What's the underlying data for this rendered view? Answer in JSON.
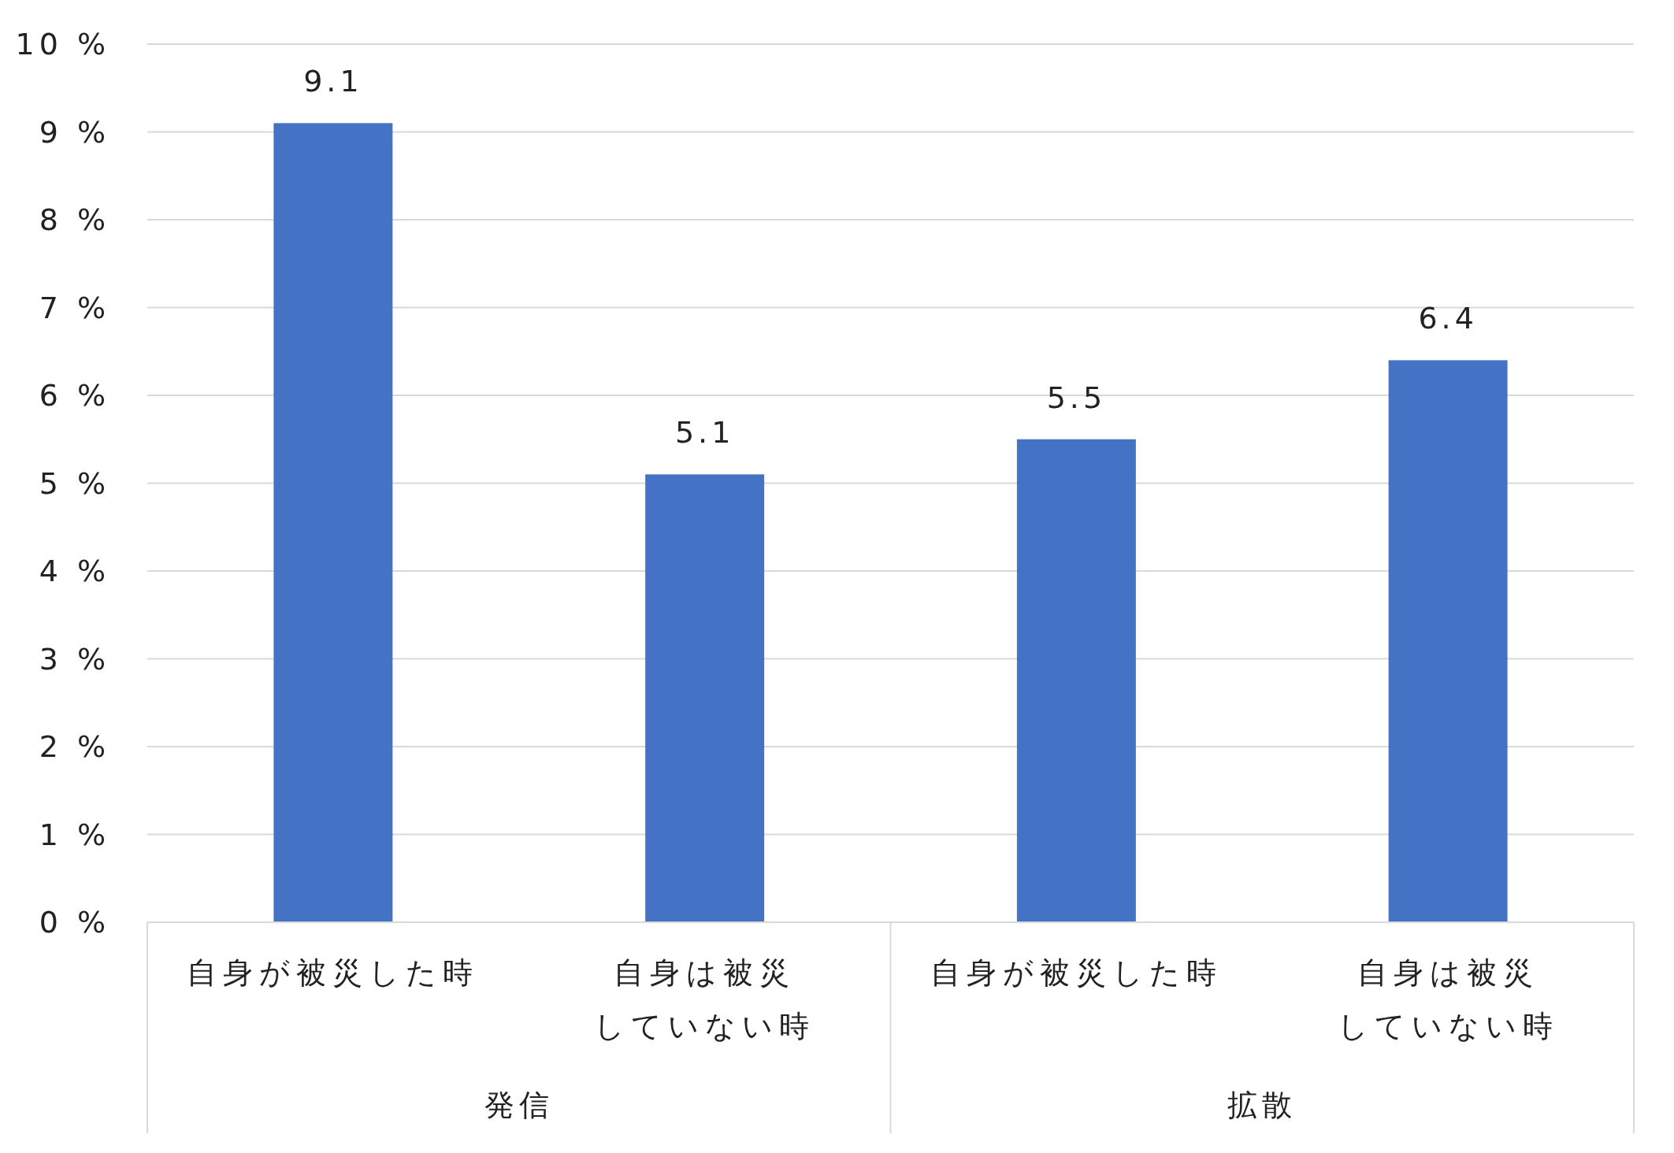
{
  "chart_data": {
    "type": "bar",
    "categories": [
      "自身が被災した時",
      "自身は被災していない時",
      "自身が被災した時",
      "自身は被災していない時"
    ],
    "values": [
      9.1,
      5.1,
      5.5,
      6.4
    ],
    "color": "#4472c4",
    "ylim": [
      0,
      10
    ],
    "yticks": [
      {
        "value": 0,
        "label": "0 %"
      },
      {
        "value": 1,
        "label": "1 %"
      },
      {
        "value": 2,
        "label": "2 %"
      },
      {
        "value": 3,
        "label": "3 %"
      },
      {
        "value": 4,
        "label": "4 %"
      },
      {
        "value": 5,
        "label": "5 %"
      },
      {
        "value": 6,
        "label": "6 %"
      },
      {
        "value": 7,
        "label": "7 %"
      },
      {
        "value": 8,
        "label": "8 %"
      },
      {
        "value": 9,
        "label": "9 %"
      },
      {
        "value": 10,
        "label": "10 %"
      }
    ],
    "grid": "y",
    "data_labels": true,
    "annotations": [
      "発信",
      "拡散"
    ]
  }
}
